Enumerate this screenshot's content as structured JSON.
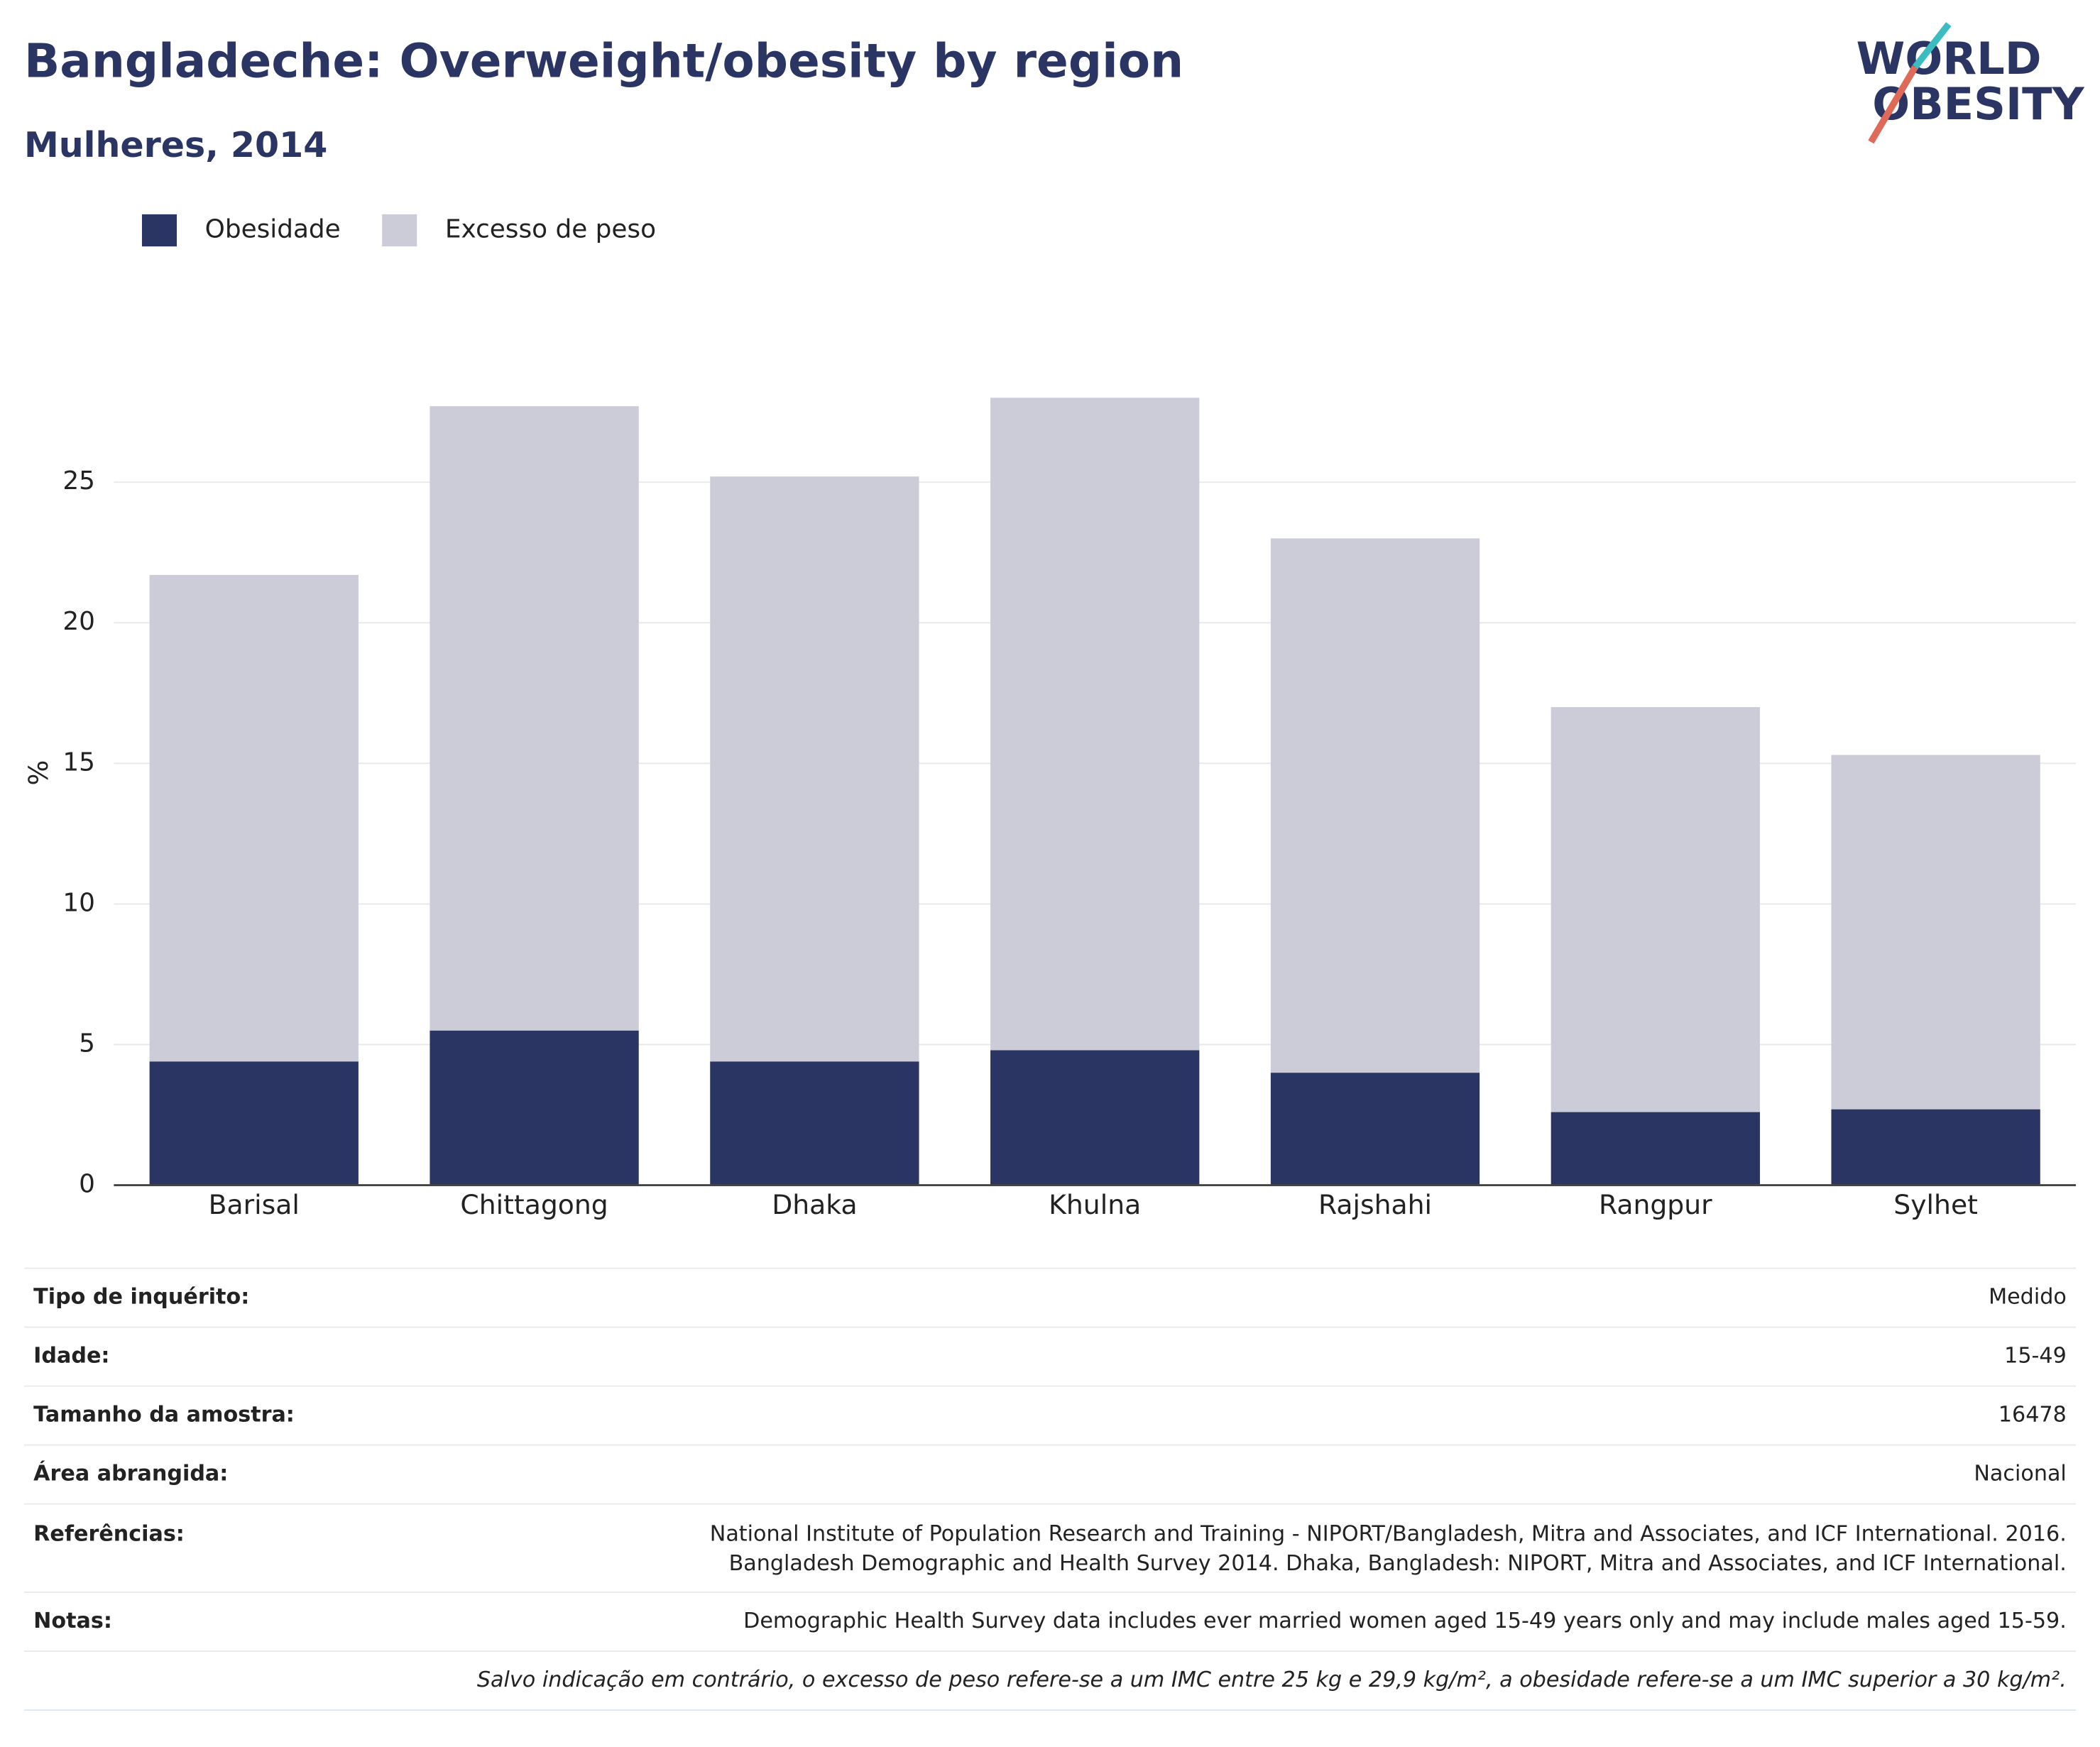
{
  "chart_data": {
    "type": "bar",
    "stacked": true,
    "title": "Bangladeche: Overweight/obesity by region",
    "subtitle": "Mulheres, 2014",
    "y_label": "%",
    "categories": [
      "Barisal",
      "Chittagong",
      "Dhaka",
      "Khulna",
      "Rajshahi",
      "Rangpur",
      "Sylhet"
    ],
    "series": [
      {
        "name": "Obesidade",
        "color": "#2a3563",
        "values": [
          4.4,
          5.5,
          4.4,
          4.8,
          4.0,
          2.6,
          2.7
        ]
      },
      {
        "name": "Excesso de peso",
        "color": "#cbccd8",
        "values": [
          17.3,
          22.2,
          20.8,
          23.2,
          19.0,
          14.4,
          12.6
        ]
      }
    ],
    "ylim": [
      0,
      30
    ],
    "yticks": [
      0,
      5,
      10,
      15,
      20,
      25
    ],
    "grid": true
  },
  "logo": {
    "line1": "WORLD",
    "line2": "OBESITY"
  },
  "table": {
    "rows": [
      {
        "label": "Tipo de inquérito:",
        "value": "Medido"
      },
      {
        "label": "Idade:",
        "value": "15-49"
      },
      {
        "label": "Tamanho da amostra:",
        "value": "16478"
      },
      {
        "label": "Área abrangida:",
        "value": "Nacional"
      },
      {
        "label": "Referências:",
        "value": [
          "National Institute of Population Research and Training - NIPORT/Bangladesh, Mitra and Associates, and ICF International. 2016.",
          "Bangladesh Demographic and Health Survey 2014. Dhaka, Bangladesh: NIPORT, Mitra and Associates, and ICF International."
        ]
      },
      {
        "label": "Notas:",
        "value": "Demographic Health Survey data includes ever married women aged 15-49 years only and may include males aged 15-59."
      },
      {
        "value": "Salvo indicação em contrário, o excesso de peso refere-se a um IMC entre 25 kg e 29,9 kg/m², a obesidade refere-se a um IMC superior a 30 kg/m²."
      }
    ]
  }
}
